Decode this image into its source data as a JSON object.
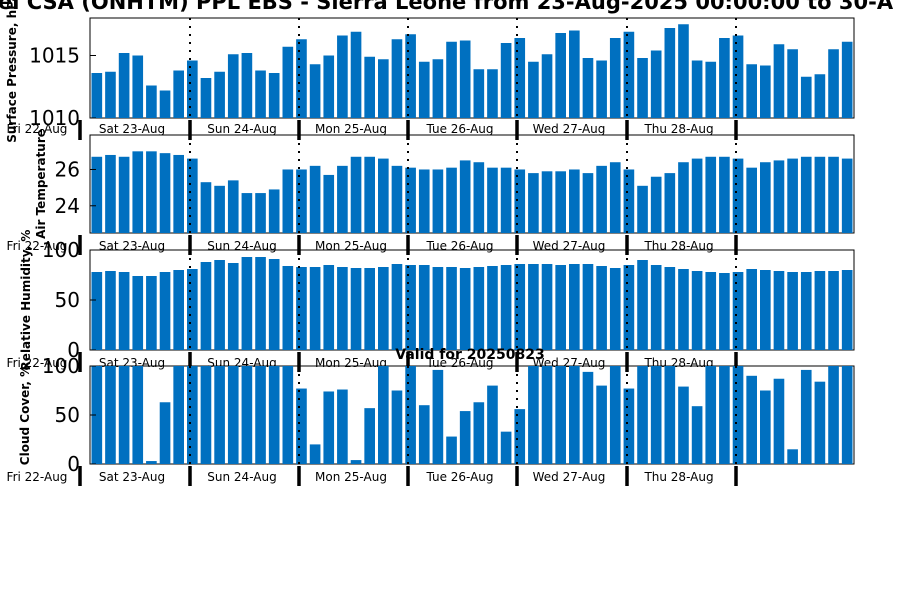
{
  "title": "el CSA (ONHTM) PPL EBS - Sierra Leone from 23-Aug-2025 00:00:00 to 30-A",
  "valid_label": "Valid for 20250823",
  "bar_color": "#0070C0",
  "day_labels": [
    "Fri 22-Aug",
    "Sat 23-Aug",
    "Sun 24-Aug",
    "Mon 25-Aug",
    "Tue 26-Aug",
    "Wed 27-Aug",
    "Thu 28-Aug"
  ],
  "chart_data": [
    {
      "type": "bar",
      "ylabel": "Surface Pressure, hPa",
      "ylim": [
        1010,
        1018
      ],
      "yticks": [
        1010,
        1015
      ],
      "values": [
        1013.6,
        1013.7,
        1015.2,
        1015,
        1012.6,
        1012.2,
        1013.8,
        1014.6,
        1013.2,
        1013.7,
        1015.1,
        1015.2,
        1013.8,
        1013.6,
        1015.7,
        1016.3,
        1014.3,
        1015,
        1016.6,
        1016.9,
        1014.9,
        1014.7,
        1016.3,
        1016.7,
        1014.5,
        1014.7,
        1016.1,
        1016.2,
        1013.9,
        1013.9,
        1016,
        1016.4,
        1014.5,
        1015.1,
        1016.8,
        1017,
        1014.8,
        1014.6,
        1016.4,
        1016.9,
        1014.8,
        1015.4,
        1017.2,
        1017.5,
        1014.6,
        1014.5,
        1016.4,
        1016.6,
        1014.3,
        1014.2,
        1015.9,
        1015.5,
        1013.3,
        1013.5,
        1015.5,
        1016.1
      ]
    },
    {
      "type": "bar",
      "ylabel": "Air Temperature",
      "ylim": [
        22.5,
        27.9
      ],
      "yticks": [
        24,
        26
      ],
      "values": [
        26.7,
        26.8,
        26.7,
        27,
        27,
        26.9,
        26.8,
        26.6,
        25.3,
        25.1,
        25.4,
        24.7,
        24.7,
        24.9,
        26,
        26,
        26.2,
        25.7,
        26.2,
        26.7,
        26.7,
        26.6,
        26.2,
        26.1,
        26,
        26,
        26.1,
        26.5,
        26.4,
        26.1,
        26.1,
        26,
        25.8,
        25.9,
        25.9,
        26,
        25.8,
        26.2,
        26.4,
        26,
        25.1,
        25.6,
        25.8,
        26.4,
        26.6,
        26.7,
        26.7,
        26.6,
        26.1,
        26.4,
        26.5,
        26.6,
        26.7,
        26.7,
        26.7,
        26.6
      ]
    },
    {
      "type": "bar",
      "ylabel": "Relative Humidity, %",
      "ylim": [
        0,
        100
      ],
      "yticks": [
        0,
        50,
        100
      ],
      "values": [
        78,
        79,
        78,
        74,
        74,
        78,
        80,
        81,
        88,
        90,
        87,
        93,
        93,
        91,
        84,
        83,
        83,
        85,
        83,
        82,
        82,
        83,
        86,
        85,
        85,
        83,
        83,
        82,
        83,
        84,
        85,
        86,
        86,
        86,
        85,
        86,
        86,
        84,
        82,
        85,
        90,
        85,
        83,
        81,
        79,
        78,
        77,
        78,
        81,
        80,
        79,
        78,
        78,
        79,
        79,
        80
      ]
    },
    {
      "type": "bar",
      "ylabel": "Cloud Cover, %",
      "ylim": [
        0,
        100
      ],
      "yticks": [
        0,
        50,
        100
      ],
      "values": [
        100,
        100,
        100,
        100,
        3,
        63,
        100,
        100,
        100,
        100,
        100,
        100,
        100,
        100,
        100,
        77,
        20,
        74,
        76,
        4,
        57,
        100,
        75,
        100,
        60,
        96,
        28,
        54,
        63,
        80,
        33,
        56,
        100,
        100,
        100,
        100,
        94,
        80,
        100,
        77,
        100,
        100,
        100,
        79,
        59,
        100,
        100,
        100,
        90,
        75,
        87,
        15,
        96,
        84,
        100,
        100
      ]
    }
  ]
}
